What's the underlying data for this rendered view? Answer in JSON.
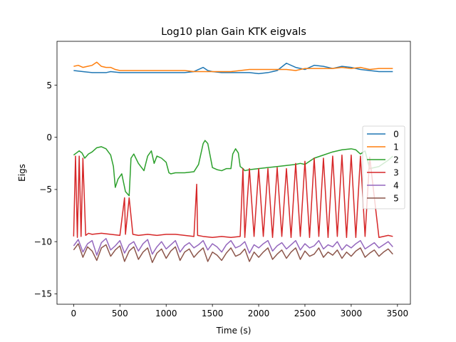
{
  "chart_data": {
    "type": "line",
    "title": "Log10 plan Gain KTK eigvals",
    "xlabel": "Time (s)",
    "ylabel": "Eigs",
    "xlim": [
      -180,
      3640
    ],
    "ylim": [
      -16,
      9.2
    ],
    "xticks": [
      0,
      500,
      1000,
      1500,
      2000,
      2500,
      3000,
      3500
    ],
    "yticks": [
      -15,
      -10,
      -5,
      0,
      5
    ],
    "grid": false,
    "legend_position": "right",
    "series": [
      {
        "name": "0",
        "color": "#1f77b4",
        "x": [
          0,
          100,
          200,
          250,
          300,
          350,
          400,
          500,
          600,
          700,
          800,
          900,
          1000,
          1100,
          1200,
          1300,
          1400,
          1450,
          1500,
          1600,
          1700,
          1800,
          1900,
          2000,
          2100,
          2200,
          2300,
          2400,
          2500,
          2600,
          2700,
          2800,
          2900,
          3000,
          3100,
          3200,
          3300,
          3450
        ],
        "y": [
          6.4,
          6.3,
          6.2,
          6.2,
          6.2,
          6.2,
          6.3,
          6.2,
          6.2,
          6.2,
          6.2,
          6.2,
          6.2,
          6.2,
          6.2,
          6.3,
          6.7,
          6.4,
          6.3,
          6.2,
          6.2,
          6.2,
          6.2,
          6.1,
          6.2,
          6.4,
          7.1,
          6.7,
          6.5,
          6.9,
          6.8,
          6.6,
          6.8,
          6.7,
          6.5,
          6.4,
          6.3,
          6.3
        ]
      },
      {
        "name": "1",
        "color": "#ff7f0e",
        "x": [
          0,
          50,
          100,
          150,
          200,
          250,
          300,
          350,
          400,
          450,
          500,
          600,
          700,
          800,
          900,
          1000,
          1100,
          1200,
          1300,
          1400,
          1500,
          1600,
          1700,
          1800,
          1900,
          2000,
          2100,
          2200,
          2300,
          2400,
          2500,
          2600,
          2700,
          2800,
          2900,
          3000,
          3100,
          3200,
          3300,
          3450
        ],
        "y": [
          6.8,
          6.9,
          6.7,
          6.8,
          6.9,
          7.2,
          6.8,
          6.7,
          6.7,
          6.5,
          6.4,
          6.4,
          6.4,
          6.4,
          6.4,
          6.4,
          6.4,
          6.4,
          6.3,
          6.3,
          6.3,
          6.3,
          6.3,
          6.4,
          6.5,
          6.5,
          6.5,
          6.5,
          6.5,
          6.4,
          6.6,
          6.6,
          6.6,
          6.6,
          6.7,
          6.6,
          6.7,
          6.5,
          6.6,
          6.6
        ]
      },
      {
        "name": "2",
        "color": "#2ca02c",
        "x": [
          0,
          30,
          60,
          90,
          120,
          160,
          200,
          250,
          300,
          350,
          400,
          430,
          450,
          480,
          520,
          560,
          600,
          620,
          650,
          700,
          760,
          800,
          840,
          870,
          900,
          950,
          1000,
          1030,
          1050,
          1100,
          1200,
          1300,
          1350,
          1400,
          1420,
          1450,
          1500,
          1550,
          1600,
          1650,
          1700,
          1720,
          1750,
          1780,
          1800,
          1830,
          1850,
          1900,
          2000,
          2100,
          2200,
          2300,
          2400,
          2450,
          2500,
          2600,
          2700,
          2800,
          2900,
          3000,
          3050,
          3100,
          3150,
          3200,
          3300,
          3400,
          3450
        ],
        "y": [
          -1.7,
          -1.5,
          -1.3,
          -1.5,
          -2.0,
          -1.6,
          -1.4,
          -1.0,
          -0.9,
          -1.1,
          -1.7,
          -2.8,
          -4.8,
          -4.0,
          -3.5,
          -5.2,
          -5.6,
          -2.0,
          -1.6,
          -2.5,
          -3.2,
          -1.8,
          -1.3,
          -2.5,
          -1.8,
          -2.0,
          -2.4,
          -3.4,
          -3.5,
          -3.4,
          -3.4,
          -3.3,
          -2.6,
          -0.6,
          -0.3,
          -0.6,
          -2.9,
          -3.1,
          -3.2,
          -3.0,
          -3.0,
          -1.6,
          -1.1,
          -1.5,
          -2.8,
          -3.0,
          -3.2,
          -3.1,
          -3.0,
          -2.9,
          -2.8,
          -2.7,
          -2.6,
          -2.5,
          -2.6,
          -2.0,
          -1.7,
          -1.4,
          -1.2,
          -1.1,
          -1.2,
          -1.6,
          -1.3,
          -3.0,
          -2.8,
          -2.2,
          -1.8
        ]
      },
      {
        "name": "3",
        "color": "#d62728",
        "x": [
          0,
          20,
          40,
          60,
          80,
          100,
          130,
          160,
          200,
          300,
          400,
          500,
          550,
          560,
          600,
          640,
          700,
          800,
          900,
          1000,
          1100,
          1200,
          1300,
          1330,
          1340,
          1400,
          1500,
          1600,
          1700,
          1800,
          1830,
          1850,
          1900,
          1950,
          2000,
          2050,
          2100,
          2150,
          2200,
          2250,
          2300,
          2350,
          2400,
          2450,
          2500,
          2550,
          2600,
          2650,
          2700,
          2750,
          2800,
          2850,
          2900,
          2950,
          3000,
          3050,
          3100,
          3150,
          3200,
          3300,
          3400,
          3450
        ],
        "y": [
          -9.5,
          -1.8,
          -9.6,
          -1.8,
          -9.5,
          -2.0,
          -9.4,
          -9.2,
          -9.3,
          -9.2,
          -9.3,
          -9.4,
          -5.8,
          -9.3,
          -5.8,
          -9.3,
          -9.4,
          -9.3,
          -9.4,
          -9.3,
          -9.3,
          -9.4,
          -9.5,
          -4.5,
          -9.4,
          -9.5,
          -9.6,
          -9.5,
          -9.6,
          -9.5,
          -3.0,
          -9.6,
          -3.0,
          -9.5,
          -3.0,
          -9.5,
          -3.0,
          -9.6,
          -2.9,
          -9.5,
          -3.0,
          -9.6,
          -2.5,
          -9.5,
          -2.3,
          -9.6,
          -2.0,
          -9.5,
          -2.0,
          -9.6,
          -1.8,
          -9.5,
          -1.7,
          -9.6,
          -1.7,
          -9.6,
          -1.8,
          -9.5,
          -1.9,
          -9.6,
          -9.4,
          -9.5
        ]
      },
      {
        "name": "4",
        "color": "#9467bd",
        "x": [
          0,
          50,
          100,
          150,
          200,
          250,
          300,
          350,
          400,
          450,
          500,
          550,
          600,
          650,
          700,
          750,
          800,
          850,
          900,
          950,
          1000,
          1050,
          1100,
          1150,
          1200,
          1250,
          1300,
          1350,
          1400,
          1450,
          1500,
          1550,
          1600,
          1650,
          1700,
          1750,
          1800,
          1850,
          1900,
          1950,
          2000,
          2050,
          2100,
          2150,
          2200,
          2250,
          2300,
          2350,
          2400,
          2450,
          2500,
          2550,
          2600,
          2650,
          2700,
          2750,
          2800,
          2850,
          2900,
          2950,
          3000,
          3050,
          3100,
          3150,
          3200,
          3250,
          3300,
          3350,
          3400,
          3450
        ],
        "y": [
          -10.4,
          -9.8,
          -11.0,
          -10.2,
          -9.9,
          -11.3,
          -10.1,
          -9.7,
          -10.8,
          -10.4,
          -9.9,
          -11.1,
          -10.3,
          -10.0,
          -10.9,
          -10.2,
          -9.8,
          -11.2,
          -10.5,
          -10.0,
          -10.7,
          -10.3,
          -9.9,
          -11.0,
          -10.4,
          -10.1,
          -10.6,
          -10.3,
          -9.9,
          -10.8,
          -10.2,
          -10.5,
          -11.0,
          -10.3,
          -9.9,
          -10.6,
          -10.4,
          -10.0,
          -11.1,
          -10.3,
          -10.6,
          -10.2,
          -9.9,
          -10.9,
          -10.4,
          -10.1,
          -10.7,
          -10.3,
          -9.9,
          -10.8,
          -10.2,
          -10.6,
          -10.4,
          -9.9,
          -10.7,
          -10.3,
          -10.5,
          -10.0,
          -10.8,
          -10.3,
          -10.6,
          -10.2,
          -9.9,
          -10.7,
          -10.4,
          -10.1,
          -10.6,
          -10.3,
          -10.0,
          -10.5
        ]
      },
      {
        "name": "5",
        "color": "#8c564b",
        "x": [
          0,
          50,
          100,
          150,
          200,
          250,
          300,
          350,
          400,
          450,
          500,
          550,
          600,
          650,
          700,
          750,
          800,
          850,
          900,
          950,
          1000,
          1050,
          1100,
          1150,
          1200,
          1250,
          1300,
          1350,
          1400,
          1450,
          1500,
          1550,
          1600,
          1650,
          1700,
          1750,
          1800,
          1850,
          1900,
          1950,
          2000,
          2050,
          2100,
          2150,
          2200,
          2250,
          2300,
          2350,
          2400,
          2450,
          2500,
          2550,
          2600,
          2650,
          2700,
          2750,
          2800,
          2850,
          2900,
          2950,
          3000,
          3050,
          3100,
          3150,
          3200,
          3250,
          3300,
          3350,
          3400,
          3450
        ],
        "y": [
          -10.8,
          -10.2,
          -11.5,
          -10.5,
          -10.9,
          -11.8,
          -10.6,
          -10.3,
          -11.4,
          -10.8,
          -10.4,
          -11.9,
          -10.9,
          -10.5,
          -11.7,
          -11.0,
          -10.6,
          -12.0,
          -11.1,
          -10.7,
          -11.6,
          -10.9,
          -10.5,
          -11.8,
          -11.0,
          -10.7,
          -11.5,
          -11.0,
          -10.6,
          -11.9,
          -11.0,
          -11.3,
          -11.8,
          -11.1,
          -10.6,
          -11.4,
          -11.2,
          -10.7,
          -11.9,
          -11.0,
          -11.5,
          -11.0,
          -10.6,
          -11.7,
          -11.2,
          -10.8,
          -11.6,
          -11.0,
          -10.6,
          -11.7,
          -10.9,
          -11.4,
          -11.2,
          -10.6,
          -11.5,
          -11.0,
          -11.3,
          -10.8,
          -11.6,
          -11.0,
          -11.4,
          -10.9,
          -10.6,
          -11.5,
          -11.1,
          -10.8,
          -11.4,
          -11.0,
          -10.7,
          -11.2
        ]
      }
    ]
  }
}
